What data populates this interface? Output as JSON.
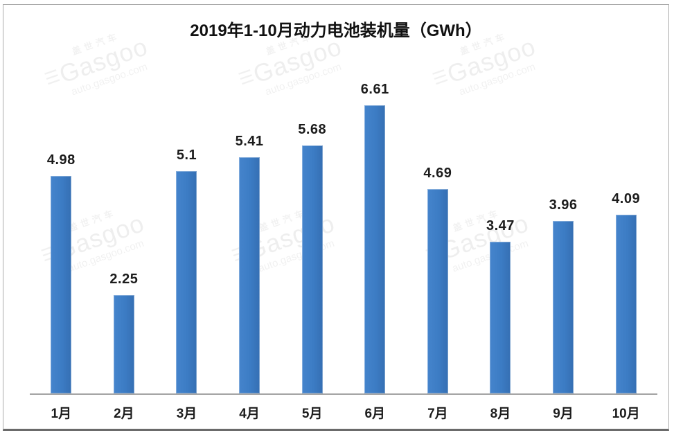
{
  "chart_data": {
    "type": "bar",
    "title": "2019年1-10月动力电池装机量（GWh）",
    "categories": [
      "1月",
      "2月",
      "3月",
      "4月",
      "5月",
      "6月",
      "7月",
      "8月",
      "9月",
      "10月"
    ],
    "values": [
      4.98,
      2.25,
      5.1,
      5.41,
      5.68,
      6.61,
      4.69,
      3.47,
      3.96,
      4.09
    ],
    "labels": [
      "4.98",
      "2.25",
      "5.1",
      "5.41",
      "5.68",
      "6.61",
      "4.69",
      "3.47",
      "3.96",
      "4.09"
    ],
    "xlabel": "",
    "ylabel": "",
    "ylim": [
      0,
      7.5
    ],
    "grid": false,
    "legend": "none",
    "data_labels": true,
    "bar_color": "#3c7cc4",
    "axis_line_color": "#a3a3a3"
  },
  "watermark": {
    "brand_cn": "盖世汽车",
    "logo_glyph": "☰",
    "brand_en": "Gasgoo",
    "url": "auto.gasgoo.com"
  }
}
